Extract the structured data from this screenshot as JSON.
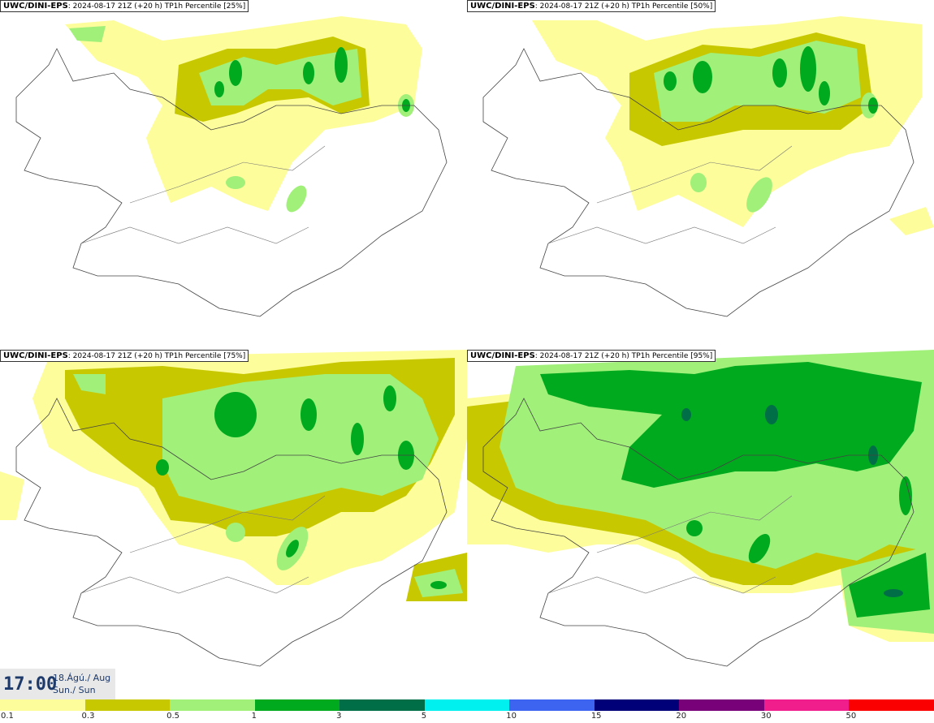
{
  "panels": [
    {
      "model": "UWC/DINI-EPS",
      "info": ": 2024-08-17 21Z (+20 h) TP1h Percentile [25%]"
    },
    {
      "model": "UWC/DINI-EPS",
      "info": ": 2024-08-17 21Z (+20 h) TP1h Percentile [50%]"
    },
    {
      "model": "UWC/DINI-EPS",
      "info": ": 2024-08-17 21Z (+20 h) TP1h Percentile [75%]"
    },
    {
      "model": "UWC/DINI-EPS",
      "info": ": 2024-08-17 21Z (+20 h) TP1h Percentile [95%]"
    }
  ],
  "time": "17:00",
  "date_line1": "18.Ágú./ Aug",
  "date_line2": "Sun./ Sun",
  "legend": {
    "colors": [
      "#fdfd9b",
      "#c8c800",
      "#a0f07a",
      "#00aa1e",
      "#006e46",
      "#00f0f0",
      "#3c64f0",
      "#000078",
      "#780078",
      "#f01e8c",
      "#fa0000"
    ],
    "labels": [
      "0.1",
      "0.3",
      "0.5",
      "1",
      "3",
      "5",
      "10",
      "15",
      "20",
      "30",
      "50"
    ]
  }
}
